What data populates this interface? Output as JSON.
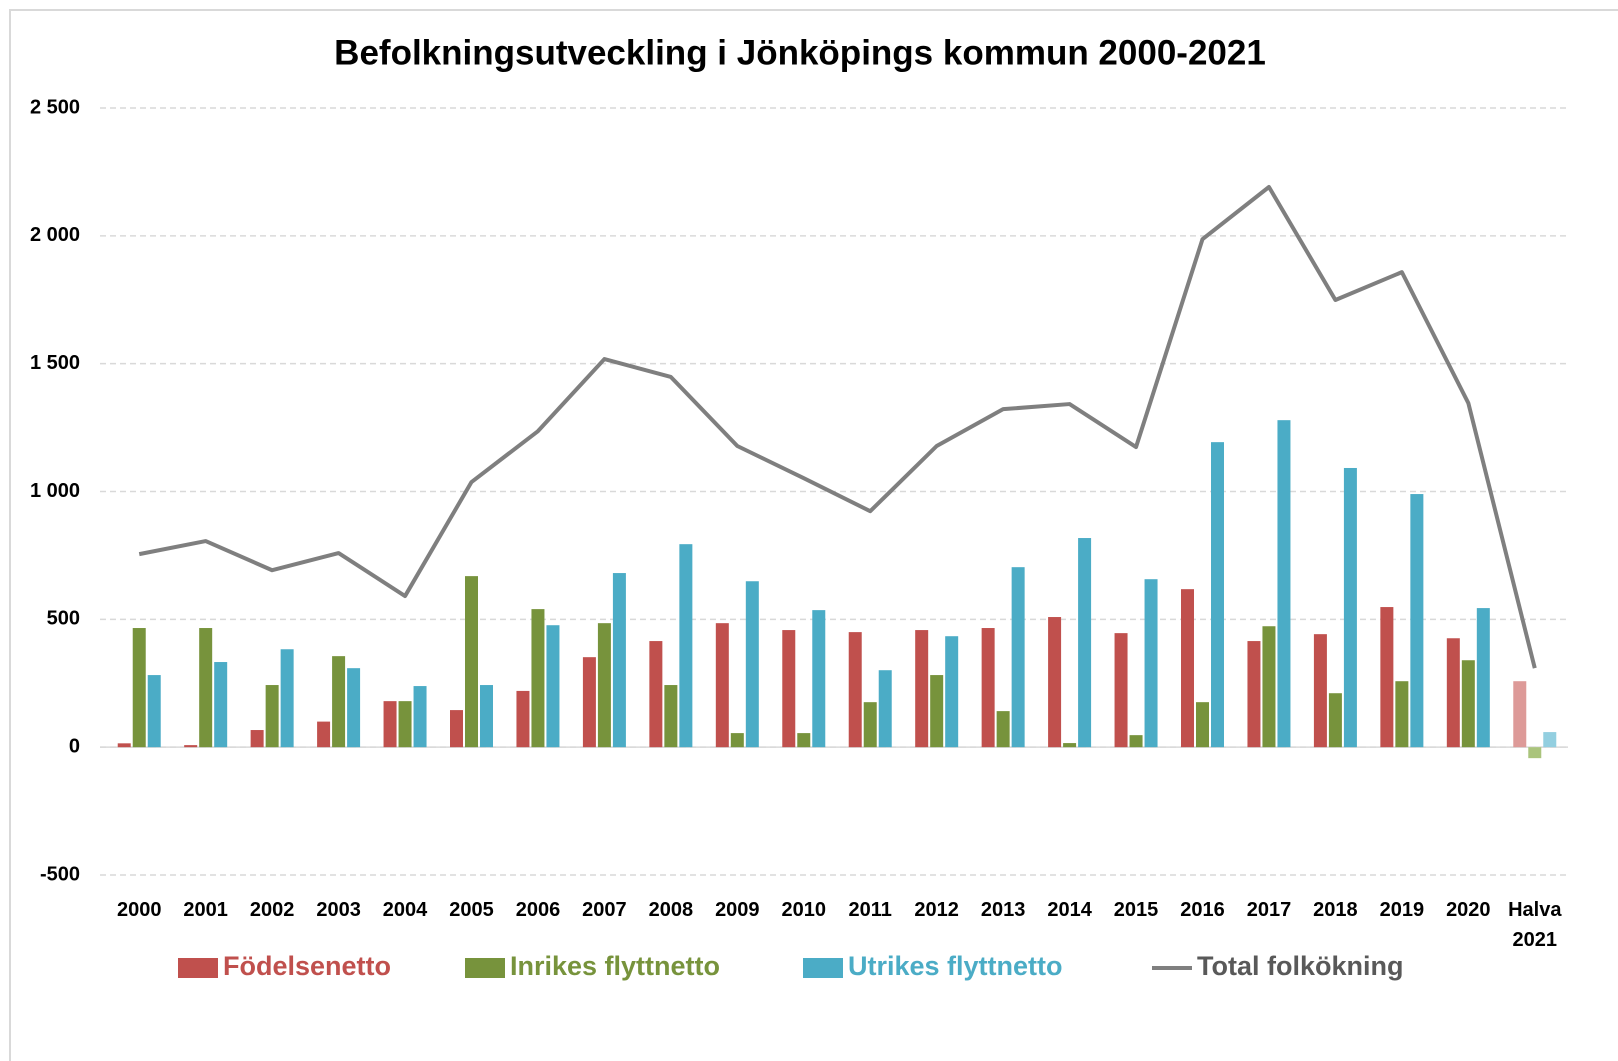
{
  "chart_data": {
    "type": "bar_line",
    "title": "Befolkningsutveckling i Jönköpings kommun 2000-2021",
    "categories": [
      "2000",
      "2001",
      "2002",
      "2003",
      "2004",
      "2005",
      "2006",
      "2007",
      "2008",
      "2009",
      "2010",
      "2011",
      "2012",
      "2013",
      "2014",
      "2015",
      "2016",
      "2017",
      "2018",
      "2019",
      "2020",
      "Halva 2021"
    ],
    "series": [
      {
        "name": "Födelsenetto",
        "type": "bar",
        "color": "#c0504d",
        "last_color": "#dd9a98",
        "values": [
          15,
          8,
          67,
          100,
          180,
          145,
          220,
          352,
          415,
          485,
          458,
          450,
          458,
          466,
          509,
          446,
          618,
          415,
          442,
          548,
          426,
          258
        ]
      },
      {
        "name": "Inrikes flyttnetto",
        "type": "bar",
        "color": "#77933c",
        "last_color": "#aac47c",
        "values": [
          466,
          466,
          243,
          356,
          180,
          669,
          540,
          485,
          243,
          55,
          55,
          176,
          282,
          141,
          16,
          47,
          176,
          473,
          211,
          258,
          340,
          -43
        ]
      },
      {
        "name": "Utrikes flyttnetto",
        "type": "bar",
        "color": "#4bacc6",
        "last_color": "#93cfe0",
        "values": [
          282,
          333,
          383,
          309,
          239,
          243,
          477,
          681,
          794,
          649,
          536,
          301,
          434,
          704,
          818,
          657,
          1193,
          1279,
          1092,
          990,
          544,
          59
        ]
      },
      {
        "name": "Total folkökning",
        "type": "line",
        "color": "#7f7f7f",
        "values": [
          755,
          806,
          692,
          759,
          591,
          1037,
          1236,
          1518,
          1448,
          1178,
          1052,
          923,
          1178,
          1322,
          1342,
          1174,
          1987,
          2191,
          1749,
          1858,
          1346,
          309
        ]
      }
    ],
    "ylim": [
      -500,
      2500
    ],
    "yticks": [
      -500,
      0,
      500,
      {
        "value": 1000,
        "label": "1 000"
      },
      {
        "value": 1500,
        "label": "1 500"
      },
      {
        "value": 2000,
        "label": "2 000"
      },
      {
        "value": 2500,
        "label": "2 500"
      }
    ],
    "grid": true,
    "legend": "bottom"
  }
}
